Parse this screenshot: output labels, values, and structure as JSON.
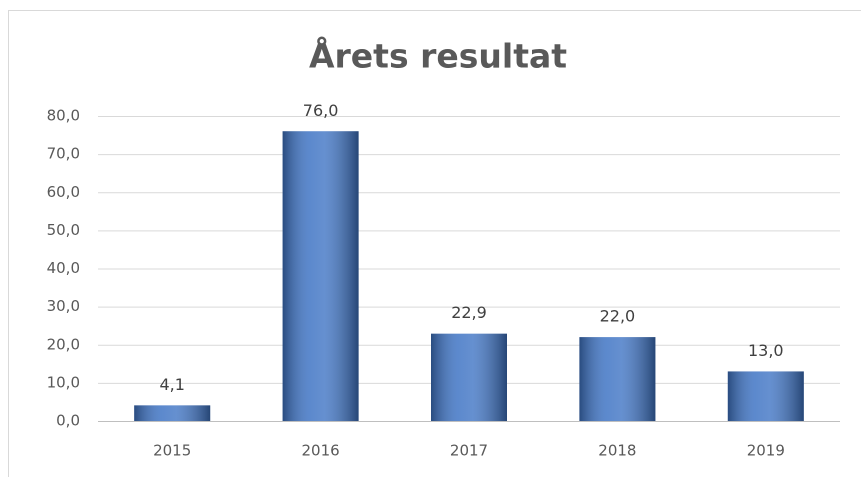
{
  "chart_data": {
    "type": "bar",
    "title": "Årets resultat",
    "categories": [
      "2015",
      "2016",
      "2017",
      "2018",
      "2019"
    ],
    "values": [
      4.1,
      76.0,
      22.9,
      22.0,
      13.0
    ],
    "value_labels": [
      "4,1",
      "76,0",
      "22,9",
      "22,0",
      "13,0"
    ],
    "color": "#3f74c4",
    "ylim": [
      0,
      80
    ],
    "yticks": [
      {
        "value": 0,
        "label": "0,0"
      },
      {
        "value": 10,
        "label": "10,0"
      },
      {
        "value": 20,
        "label": "20,0"
      },
      {
        "value": 30,
        "label": "30,0"
      },
      {
        "value": 40,
        "label": "40,0"
      },
      {
        "value": 50,
        "label": "50,0"
      },
      {
        "value": 60,
        "label": "60,0"
      },
      {
        "value": 70,
        "label": "70,0"
      },
      {
        "value": 80,
        "label": "80,0"
      }
    ],
    "grid": true
  }
}
